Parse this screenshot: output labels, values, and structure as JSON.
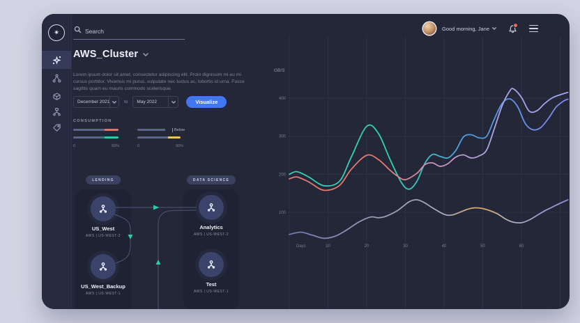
{
  "sidebar": {
    "items": [
      {
        "icon": "sparkle-icon",
        "active": true
      },
      {
        "icon": "share-network-icon",
        "active": false
      },
      {
        "icon": "cube-icon",
        "active": false
      },
      {
        "icon": "hierarchy-icon",
        "active": false
      },
      {
        "icon": "tag-icon",
        "active": false
      }
    ]
  },
  "topbar": {
    "search_placeholder": "Search",
    "greeting": "Good morning, Jane"
  },
  "header": {
    "title": "AWS_Cluster",
    "description": "Lorem ipsum dolor sit amet, consectetur adipiscing elit. Proin dignissim mi eu mi cursus porttitor. Vivamus mi purus, vulputate nec luctus ac, lobortis id urna. Fusce sagittis quam eu mauris commodo scelerisque."
  },
  "controls": {
    "date_from": "December 2021",
    "range_separator": "to",
    "date_to": "May 2022",
    "visualize_label": "Visualize"
  },
  "consumption": {
    "label": "CONSUMPTION",
    "groups": [
      {
        "bars": [
          {
            "base_pct": 68,
            "accent_pct": 30,
            "accent_color": "#e5756b"
          },
          {
            "base_pct": 68,
            "accent_pct": 30,
            "accent_color": "#2fc9a6"
          }
        ],
        "scale_min": "0",
        "scale_max": "50%"
      },
      {
        "bars": [
          {
            "base_pct": 60,
            "marker_pct": 76,
            "marker_label": "Below"
          },
          {
            "base_pct": 66,
            "accent_pct": 28,
            "accent_color": "#ecc35e"
          }
        ],
        "scale_min": "0",
        "scale_max": "50%"
      }
    ]
  },
  "diagram": {
    "groups": [
      {
        "badge": "LENDING",
        "nodes": [
          {
            "name": "US_West",
            "sub": "AWS | US-WEST-2"
          },
          {
            "name": "US_West_Backup",
            "sub": "AWS | US-WEST-1"
          }
        ]
      },
      {
        "badge": "DATA SCIENCE",
        "nodes": [
          {
            "name": "Analytics",
            "sub": "AWS | US-WEST-2"
          },
          {
            "name": "Test",
            "sub": "AWS | US-WEST-1"
          }
        ]
      }
    ]
  },
  "colors": {
    "accent_blue": "#4276f5",
    "teal": "#2fc9a6",
    "salmon": "#e5756b",
    "yellow": "#ecc35e",
    "notification_dot": "#e86f54"
  },
  "chart_data": {
    "type": "line",
    "title": "",
    "ylabel": "GB/S",
    "xlabel": "Days",
    "x_ticks": [
      10,
      20,
      30,
      40,
      50,
      60
    ],
    "y_ticks": [
      400,
      300,
      200,
      100
    ],
    "xlim": [
      0,
      72
    ],
    "ylim": [
      0,
      450
    ],
    "grid": true,
    "legend": "none",
    "series": [
      {
        "name": "throughput-high",
        "gradient": [
          {
            "offset": "0%",
            "color": "#34d0b4"
          },
          {
            "offset": "42%",
            "color": "#34d0b4"
          },
          {
            "offset": "62%",
            "color": "#4b9fe2"
          },
          {
            "offset": "78%",
            "color": "#5f93ea"
          },
          {
            "offset": "100%",
            "color": "#8289ea"
          }
        ],
        "points": [
          [
            0,
            200
          ],
          [
            2,
            207
          ],
          [
            5,
            193
          ],
          [
            9,
            170
          ],
          [
            13,
            182
          ],
          [
            16,
            245
          ],
          [
            20,
            326
          ],
          [
            23,
            308
          ],
          [
            26,
            240
          ],
          [
            29,
            178
          ],
          [
            31,
            161
          ],
          [
            33,
            182
          ],
          [
            35,
            228
          ],
          [
            37,
            252
          ],
          [
            39,
            247
          ],
          [
            41,
            243
          ],
          [
            43,
            262
          ],
          [
            45,
            298
          ],
          [
            47,
            304
          ],
          [
            49,
            296
          ],
          [
            51,
            300
          ],
          [
            53,
            345
          ],
          [
            55,
            386
          ],
          [
            57,
            398
          ],
          [
            59,
            378
          ],
          [
            61,
            333
          ],
          [
            63,
            317
          ],
          [
            65,
            323
          ],
          [
            67,
            347
          ],
          [
            69,
            377
          ],
          [
            71,
            393
          ],
          [
            72,
            397
          ]
        ]
      },
      {
        "name": "throughput-mid",
        "gradient": [
          {
            "offset": "0%",
            "color": "#e5796f"
          },
          {
            "offset": "32%",
            "color": "#e5796f"
          },
          {
            "offset": "50%",
            "color": "#cf8fb4"
          },
          {
            "offset": "65%",
            "color": "#b5a0d6"
          },
          {
            "offset": "82%",
            "color": "#a3a6ec"
          },
          {
            "offset": "100%",
            "color": "#9da4f0"
          }
        ],
        "points": [
          [
            0,
            188
          ],
          [
            2,
            193
          ],
          [
            5,
            180
          ],
          [
            9,
            158
          ],
          [
            13,
            171
          ],
          [
            16,
            213
          ],
          [
            20,
            250
          ],
          [
            23,
            239
          ],
          [
            26,
            211
          ],
          [
            28,
            195
          ],
          [
            30,
            186
          ],
          [
            33,
            203
          ],
          [
            35,
            225
          ],
          [
            37,
            230
          ],
          [
            39,
            221
          ],
          [
            41,
            228
          ],
          [
            43,
            245
          ],
          [
            45,
            251
          ],
          [
            47,
            243
          ],
          [
            49,
            248
          ],
          [
            51,
            264
          ],
          [
            53,
            320
          ],
          [
            55,
            380
          ],
          [
            57,
            419
          ],
          [
            58,
            424
          ],
          [
            60,
            402
          ],
          [
            62,
            366
          ],
          [
            64,
            367
          ],
          [
            66,
            386
          ],
          [
            68,
            401
          ],
          [
            70,
            409
          ],
          [
            72,
            415
          ]
        ]
      },
      {
        "name": "throughput-low",
        "gradient": [
          {
            "offset": "0%",
            "color": "#7079b2"
          },
          {
            "offset": "30%",
            "color": "#959cb4"
          },
          {
            "offset": "55%",
            "color": "#a9adc0"
          },
          {
            "offset": "68%",
            "color": "#dfa963"
          },
          {
            "offset": "80%",
            "color": "#a9adc0"
          },
          {
            "offset": "100%",
            "color": "#8a91dd"
          }
        ],
        "points": [
          [
            0,
            42
          ],
          [
            3,
            48
          ],
          [
            6,
            40
          ],
          [
            9,
            32
          ],
          [
            12,
            38
          ],
          [
            15,
            55
          ],
          [
            18,
            75
          ],
          [
            21,
            88
          ],
          [
            23,
            86
          ],
          [
            25,
            90
          ],
          [
            28,
            105
          ],
          [
            31,
            128
          ],
          [
            33,
            133
          ],
          [
            35,
            125
          ],
          [
            37,
            112
          ],
          [
            40,
            95
          ],
          [
            42,
            93
          ],
          [
            44,
            100
          ],
          [
            46,
            108
          ],
          [
            48,
            112
          ],
          [
            50,
            110
          ],
          [
            52,
            104
          ],
          [
            54,
            95
          ],
          [
            56,
            82
          ],
          [
            58,
            74
          ],
          [
            60,
            73
          ],
          [
            62,
            80
          ],
          [
            64,
            92
          ],
          [
            66,
            104
          ],
          [
            68,
            114
          ],
          [
            70,
            124
          ],
          [
            72,
            133
          ]
        ]
      }
    ]
  }
}
